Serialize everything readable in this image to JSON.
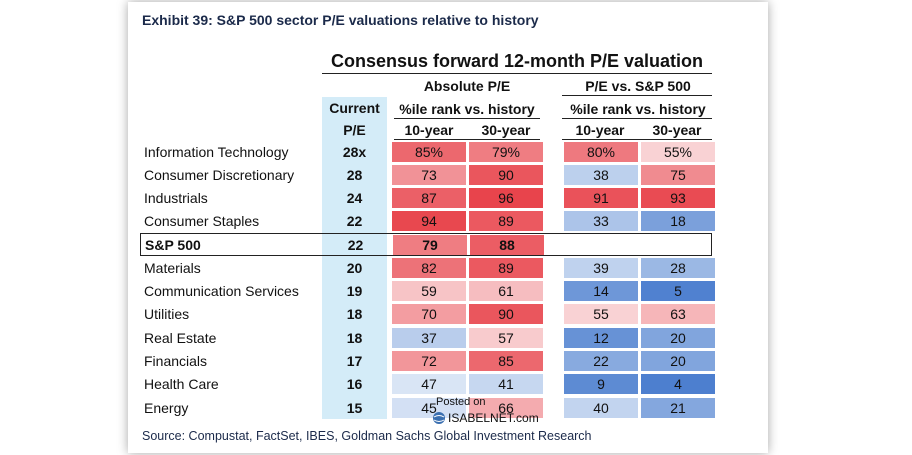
{
  "exhibit_title": "Exhibit 39: S&P 500 sector P/E valuations relative to history",
  "table_title": "Consensus forward 12-month P/E valuation",
  "headers": {
    "current_pe": "Current",
    "current_pe2": "P/E",
    "abs_group": "Absolute P/E",
    "abs_sub": "%ile rank vs. history",
    "rel_group": "P/E vs. S&P 500",
    "rel_sub": "%ile rank vs. history",
    "ten_year": "10-year",
    "thirty_year": "30-year"
  },
  "rows": [
    {
      "name": "Information Technology",
      "pe": "28x",
      "abs10": "85%",
      "abs30": "79%",
      "rel10": "80%",
      "rel30": "55%"
    },
    {
      "name": "Consumer Discretionary",
      "pe": "28",
      "abs10": "73",
      "abs30": "90",
      "rel10": "38",
      "rel30": "75"
    },
    {
      "name": "Industrials",
      "pe": "24",
      "abs10": "87",
      "abs30": "96",
      "rel10": "91",
      "rel30": "93"
    },
    {
      "name": "Consumer Staples",
      "pe": "22",
      "abs10": "94",
      "abs30": "89",
      "rel10": "33",
      "rel30": "18"
    },
    {
      "name": "S&P 500",
      "pe": "22",
      "abs10": "79",
      "abs30": "88",
      "rel10": "",
      "rel30": ""
    },
    {
      "name": "Materials",
      "pe": "20",
      "abs10": "82",
      "abs30": "89",
      "rel10": "39",
      "rel30": "28"
    },
    {
      "name": "Communication Services",
      "pe": "19",
      "abs10": "59",
      "abs30": "61",
      "rel10": "14",
      "rel30": "5"
    },
    {
      "name": "Utilities",
      "pe": "18",
      "abs10": "70",
      "abs30": "90",
      "rel10": "55",
      "rel30": "63"
    },
    {
      "name": "Real Estate",
      "pe": "18",
      "abs10": "37",
      "abs30": "57",
      "rel10": "12",
      "rel30": "20"
    },
    {
      "name": "Financials",
      "pe": "17",
      "abs10": "72",
      "abs30": "85",
      "rel10": "22",
      "rel30": "20"
    },
    {
      "name": "Health Care",
      "pe": "16",
      "abs10": "47",
      "abs30": "41",
      "rel10": "9",
      "rel30": "4"
    },
    {
      "name": "Energy",
      "pe": "15",
      "abs10": "45",
      "abs30": "66",
      "rel10": "40",
      "rel30": "21"
    }
  ],
  "colors": {
    "current_col": "#d4ecf8",
    "hot": "#e8444c",
    "cold": "#4d7fcf"
  },
  "source": "Source: Compustat, FactSet, IBES, Goldman Sachs Global Investment Research",
  "watermark": {
    "posted": "Posted on",
    "site": "ISABELNET.com"
  }
}
